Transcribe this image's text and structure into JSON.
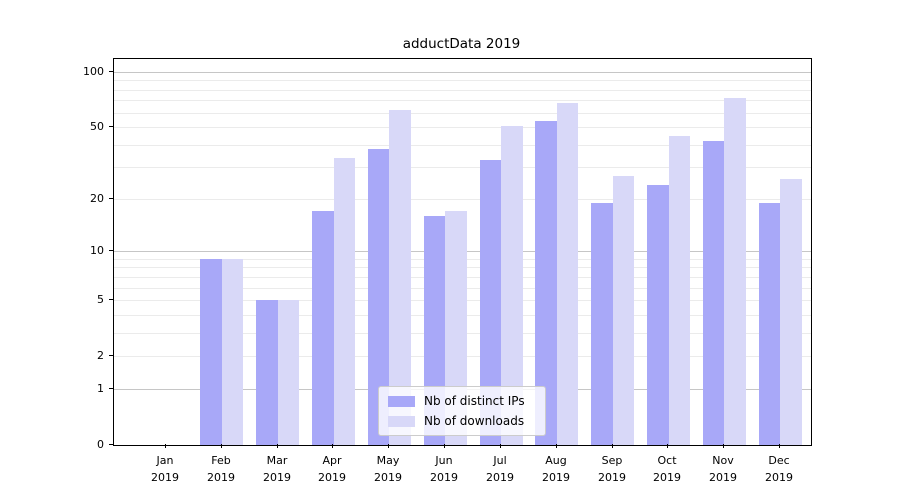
{
  "title": "adductData 2019",
  "chart_data": {
    "type": "bar",
    "title": "adductData 2019",
    "categories": [
      "Jan 2019",
      "Feb 2019",
      "Mar 2019",
      "Apr 2019",
      "May 2019",
      "Jun 2019",
      "Jul 2019",
      "Aug 2019",
      "Sep 2019",
      "Oct 2019",
      "Nov 2019",
      "Dec 2019"
    ],
    "series": [
      {
        "name": "Nb of distinct IPs",
        "color": "#a8a8f8",
        "values": [
          0,
          9,
          5,
          17,
          38,
          16,
          33,
          54,
          19,
          24,
          42,
          19
        ]
      },
      {
        "name": "Nb of downloads",
        "color": "#d8d8f8",
        "values": [
          0,
          9,
          5,
          34,
          62,
          17,
          51,
          68,
          27,
          45,
          72,
          26
        ]
      }
    ],
    "xlabel": "",
    "ylabel": "",
    "yscale": "symlog",
    "yticks": [
      0,
      1,
      2,
      5,
      10,
      20,
      50,
      100
    ],
    "ylim": [
      0,
      118
    ],
    "grid": true,
    "legend_position": "lower center"
  }
}
